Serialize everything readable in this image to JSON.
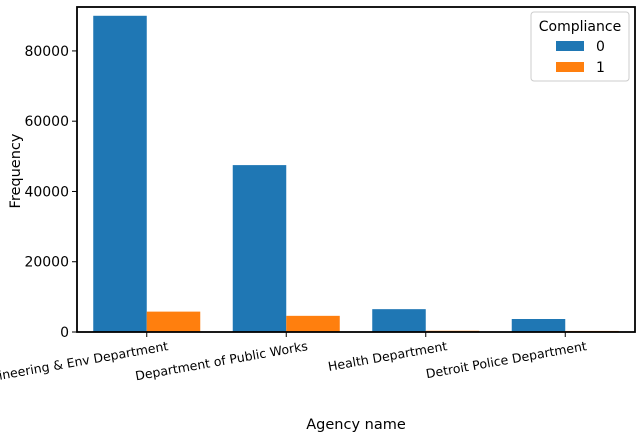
{
  "chart_data": {
    "type": "bar",
    "categories": [
      "Buildings, Safety Engineering & Env Department",
      "Department of Public Works",
      "Health Department",
      "Detroit Police Department"
    ],
    "series": [
      {
        "name": "0",
        "values": [
          90000,
          47500,
          6500,
          3700
        ],
        "color": "#1f77b4"
      },
      {
        "name": "1",
        "values": [
          5800,
          4600,
          350,
          300
        ],
        "color": "#ff7f0e"
      }
    ],
    "xlabel": "Agency name",
    "ylabel": "Frequency",
    "ylim": [
      0,
      92500
    ],
    "yticks": [
      0,
      20000,
      40000,
      60000,
      80000
    ],
    "ytick_labels": [
      "0",
      "20000",
      "40000",
      "60000",
      "80000"
    ],
    "legend": {
      "title": "Compliance",
      "position": "top-right"
    },
    "grid": false
  }
}
